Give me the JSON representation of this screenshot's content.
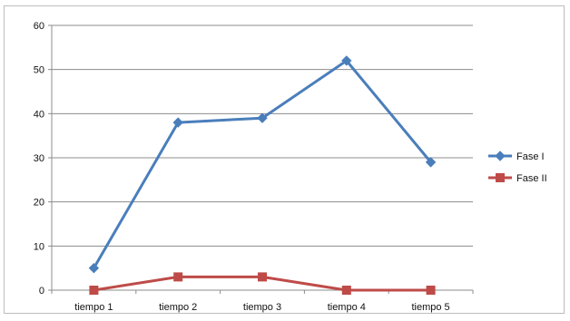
{
  "chart_data": {
    "type": "line",
    "categories": [
      "tiempo 1",
      "tiempo 2",
      "tiempo 3",
      "tiempo 4",
      "tiempo 5"
    ],
    "series": [
      {
        "name": "Fase I",
        "values": [
          5,
          38,
          39,
          52,
          29
        ],
        "color": "#4a7ebb",
        "marker": "diamond"
      },
      {
        "name": "Fase II",
        "values": [
          0,
          3,
          3,
          0,
          0
        ],
        "color": "#be4b48",
        "marker": "square"
      }
    ],
    "ylim": [
      0,
      60
    ],
    "yticks": [
      0,
      10,
      20,
      30,
      40,
      50,
      60
    ],
    "title": "",
    "xlabel": "",
    "ylabel": "",
    "grid": true,
    "legend": "right"
  }
}
